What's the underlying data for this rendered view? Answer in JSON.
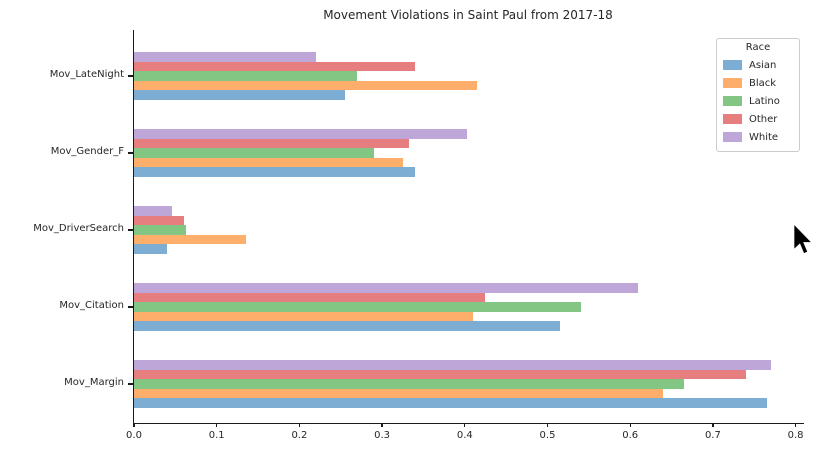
{
  "chart_data": {
    "type": "bar",
    "orientation": "horizontal",
    "title": "Movement Violations in Saint Paul from 2017-18",
    "categories": [
      "Mov_LateNight",
      "Mov_Gender_F",
      "Mov_DriverSearch",
      "Mov_Citation",
      "Mov_Margin"
    ],
    "series": [
      {
        "name": "Asian",
        "color": "#7dadd2",
        "values": [
          0.255,
          0.34,
          0.04,
          0.515,
          0.765
        ]
      },
      {
        "name": "Black",
        "color": "#fdae6b",
        "values": [
          0.415,
          0.325,
          0.135,
          0.41,
          0.64
        ]
      },
      {
        "name": "Latino",
        "color": "#83c583",
        "values": [
          0.27,
          0.29,
          0.063,
          0.54,
          0.665
        ]
      },
      {
        "name": "Other",
        "color": "#e67e7f",
        "values": [
          0.34,
          0.333,
          0.06,
          0.425,
          0.74
        ]
      },
      {
        "name": "White",
        "color": "#bfa6d8",
        "values": [
          0.22,
          0.403,
          0.046,
          0.61,
          0.77
        ]
      }
    ],
    "xlim": [
      0,
      0.8
    ],
    "xticks": [
      "0.0",
      "0.1",
      "0.2",
      "0.3",
      "0.4",
      "0.5",
      "0.6",
      "0.7",
      "0.8"
    ],
    "grid": false,
    "legend": {
      "title": "Race",
      "position": "upper-right"
    }
  },
  "cursor": {
    "shape": "arrow"
  }
}
